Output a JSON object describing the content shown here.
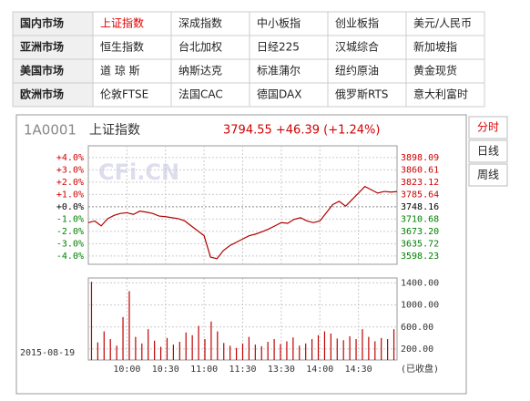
{
  "nav": {
    "rows": [
      {
        "region": "国内市场",
        "items": [
          "上证指数",
          "深成指数",
          "中小板指",
          "创业板指",
          "美元/人民币"
        ]
      },
      {
        "region": "亚洲市场",
        "items": [
          "恒生指数",
          "台北加权",
          "日经225",
          "汉城综合",
          "新加坡指"
        ]
      },
      {
        "region": "美国市场",
        "items": [
          "道 琼 斯",
          "纳斯达克",
          "标准蒲尔",
          "纽约原油",
          "黄金现货"
        ]
      },
      {
        "region": "欧洲市场",
        "items": [
          "伦敦FTSE",
          "法国CAC",
          "德国DAX",
          "俄罗斯RTS",
          "意大利富时"
        ]
      }
    ]
  },
  "tabs": [
    "分时",
    "日线",
    "周线"
  ],
  "header": {
    "code": "1A0001",
    "title": "上证指数",
    "quote": "3794.55 +46.39 (+1.24%)",
    "watermark": "CFi.CN",
    "date": "2015-08-19",
    "status": "(已收盘)"
  },
  "chart_data": [
    {
      "type": "line",
      "color": "#b00000",
      "time_labels": [
        "10:00",
        "10:30",
        "11:00",
        "11:30",
        "13:30",
        "14:00",
        "14:30"
      ],
      "values": [
        3700,
        3705,
        3690,
        3712,
        3722,
        3728,
        3730,
        3725,
        3735,
        3732,
        3728,
        3720,
        3718,
        3715,
        3712,
        3705,
        3690,
        3675,
        3660,
        3595,
        3590,
        3615,
        3630,
        3640,
        3650,
        3660,
        3665,
        3672,
        3680,
        3690,
        3700,
        3698,
        3710,
        3715,
        3705,
        3700,
        3705,
        3730,
        3755,
        3765,
        3750,
        3770,
        3790,
        3810,
        3800,
        3790,
        3795,
        3793,
        3794.55
      ],
      "ylim": [
        3573,
        3934
      ],
      "yticks": [
        3898.09,
        3860.61,
        3823.12,
        3785.64,
        3748.16,
        3710.68,
        {
          "value": 3673.2,
          "label": "3673.20"
        },
        3635.72,
        3598.23
      ],
      "y2lim": [
        -4.67,
        4.96
      ],
      "y2ticks": [
        {
          "value": 4.0,
          "label": "+4.0%"
        },
        {
          "value": 3.0,
          "label": "+3.0%"
        },
        {
          "value": 2.0,
          "label": "+2.0%"
        },
        {
          "value": 1.0,
          "label": "+1.0%"
        },
        {
          "value": 0.0,
          "label": "+0.0%"
        },
        {
          "value": -1.0,
          "label": "-1.0%"
        },
        {
          "value": -2.0,
          "label": "-2.0%"
        },
        {
          "value": -3.0,
          "label": "-3.0%"
        },
        {
          "value": -4.0,
          "label": "-4.0%"
        }
      ],
      "grid": true
    },
    {
      "type": "bar",
      "color": "#c00000",
      "values": [
        1420,
        320,
        520,
        380,
        260,
        780,
        1250,
        420,
        300,
        560,
        350,
        240,
        400,
        280,
        330,
        500,
        450,
        620,
        380,
        700,
        520,
        310,
        260,
        220,
        300,
        420,
        280,
        250,
        330,
        380,
        290,
        340,
        410,
        260,
        300,
        380,
        450,
        520,
        480,
        390,
        360,
        430,
        380,
        560,
        420,
        340,
        400,
        380,
        560
      ],
      "ylim": [
        0,
        1490
      ],
      "yticks": [
        {
          "value": 1400,
          "label": "1400.00"
        },
        {
          "value": 1000,
          "label": "1000.00"
        },
        {
          "value": 600,
          "label": "600.00"
        },
        {
          "value": 200,
          "label": "200.00"
        }
      ],
      "grid": true
    }
  ]
}
